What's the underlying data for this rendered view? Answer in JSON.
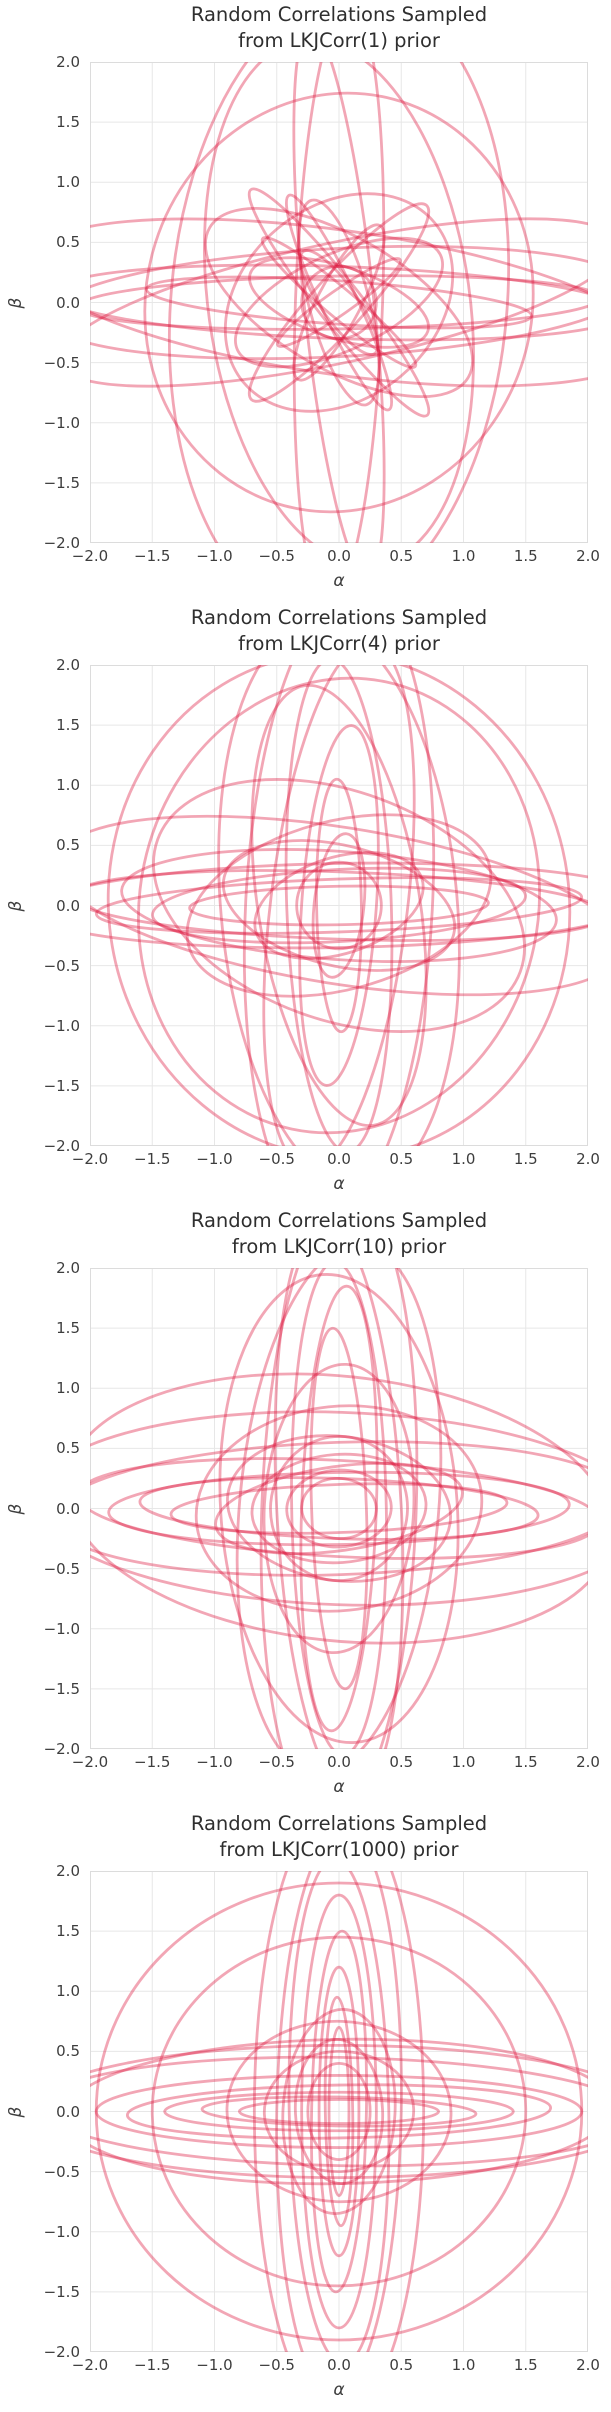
{
  "style": {
    "background": "#ffffff",
    "ellipse_color": "#dc143c",
    "ellipse_opacity": 0.38,
    "ellipse_width": 2.8,
    "grid_color": "#e7e7e7",
    "spine_color": "#dcdcdc",
    "text_color": "#3d3d3d",
    "title_color": "#2f2f2f"
  },
  "chart_data": [
    {
      "type": "ellipse-contour",
      "eta": 1,
      "title_line1": "Random Correlations Sampled",
      "title_line2": "from LKJCorr(1) prior",
      "xlabel": "α",
      "ylabel": "β",
      "xlim": [
        -2,
        2
      ],
      "ylim": [
        -2,
        2
      ],
      "grid": true,
      "ticks": {
        "values": [
          -2,
          -1.5,
          -1,
          -0.5,
          0,
          0.5,
          1,
          1.5,
          2
        ],
        "labels": [
          "−2.0",
          "−1.5",
          "−1.0",
          "−0.5",
          "0.0",
          "0.5",
          "1.0",
          "1.5",
          "2.0"
        ]
      },
      "ellipses": [
        [
          1.35,
          2.6,
          -5
        ],
        [
          1.05,
          2.2,
          8
        ],
        [
          1.55,
          1.75,
          -15
        ],
        [
          0.35,
          2.5,
          -2
        ],
        [
          0.28,
          2.3,
          6
        ],
        [
          2.35,
          0.45,
          3
        ],
        [
          2.3,
          0.3,
          -2
        ],
        [
          2.1,
          0.22,
          1
        ],
        [
          1.55,
          0.18,
          -4
        ],
        [
          2.5,
          0.6,
          -8
        ],
        [
          2.3,
          0.5,
          12
        ],
        [
          1.15,
          0.18,
          -52
        ],
        [
          0.95,
          0.15,
          -65
        ],
        [
          1.05,
          0.22,
          48
        ],
        [
          0.8,
          0.12,
          -40
        ],
        [
          0.7,
          0.18,
          62
        ],
        [
          0.85,
          0.25,
          -75
        ],
        [
          0.6,
          0.1,
          35
        ],
        [
          0.5,
          0.15,
          -55
        ],
        [
          1.2,
          0.55,
          -30
        ],
        [
          0.9,
          0.4,
          25
        ],
        [
          0.75,
          0.3,
          -18
        ],
        [
          1.0,
          0.8,
          40
        ],
        [
          0.3,
          0.3,
          0
        ]
      ]
    },
    {
      "type": "ellipse-contour",
      "eta": 4,
      "title_line1": "Random Correlations Sampled",
      "title_line2": "from LKJCorr(4) prior",
      "xlabel": "α",
      "ylabel": "β",
      "xlim": [
        -2,
        2
      ],
      "ylim": [
        -2,
        2
      ],
      "grid": true,
      "ticks": {
        "values": [
          -2,
          -1.5,
          -1,
          -0.5,
          0,
          0.5,
          1,
          1.5,
          2
        ],
        "labels": [
          "−2.0",
          "−1.5",
          "−1.0",
          "−0.5",
          "0.0",
          "0.5",
          "1.0",
          "1.5",
          "2.0"
        ]
      },
      "ellipses": [
        [
          0.75,
          2.6,
          -3
        ],
        [
          0.95,
          2.35,
          5
        ],
        [
          0.55,
          2.2,
          -7
        ],
        [
          0.42,
          2.05,
          2
        ],
        [
          0.65,
          1.85,
          9
        ],
        [
          0.3,
          1.5,
          -4
        ],
        [
          0.18,
          1.05,
          1
        ],
        [
          1.6,
          1.9,
          -12
        ],
        [
          1.85,
          2.1,
          8
        ],
        [
          2.45,
          0.35,
          1
        ],
        [
          2.15,
          0.28,
          -2
        ],
        [
          1.95,
          0.22,
          2
        ],
        [
          1.75,
          0.45,
          -4
        ],
        [
          1.5,
          0.3,
          3
        ],
        [
          2.3,
          0.65,
          -9
        ],
        [
          1.2,
          0.16,
          1
        ],
        [
          1.55,
          0.95,
          -20
        ],
        [
          1.25,
          0.7,
          15
        ],
        [
          0.95,
          0.5,
          -14
        ],
        [
          0.7,
          0.4,
          18
        ],
        [
          0.34,
          0.36,
          0
        ],
        [
          0.2,
          0.6,
          -6
        ]
      ]
    },
    {
      "type": "ellipse-contour",
      "eta": 10,
      "title_line1": "Random Correlations Sampled",
      "title_line2": "from LKJCorr(10) prior",
      "xlabel": "α",
      "ylabel": "β",
      "xlim": [
        -2,
        2
      ],
      "ylim": [
        -2,
        2
      ],
      "grid": true,
      "ticks": {
        "values": [
          -2,
          -1.5,
          -1,
          -0.5,
          0,
          0.5,
          1,
          1.5,
          2
        ],
        "labels": [
          "−2.0",
          "−1.5",
          "−1.0",
          "−0.5",
          "0.0",
          "0.5",
          "1.0",
          "1.5",
          "2.0"
        ]
      },
      "ellipses": [
        [
          0.62,
          2.6,
          -2
        ],
        [
          0.5,
          2.4,
          3
        ],
        [
          0.8,
          2.2,
          -5
        ],
        [
          0.38,
          2.05,
          1
        ],
        [
          0.3,
          1.85,
          -2
        ],
        [
          0.95,
          1.95,
          4
        ],
        [
          0.22,
          1.5,
          2
        ],
        [
          2.45,
          0.8,
          -2
        ],
        [
          2.3,
          0.55,
          2
        ],
        [
          2.1,
          0.4,
          -3
        ],
        [
          1.85,
          0.3,
          1
        ],
        [
          1.6,
          0.25,
          -2
        ],
        [
          1.35,
          0.2,
          2
        ],
        [
          2.2,
          1.1,
          -6
        ],
        [
          1.15,
          0.85,
          6
        ],
        [
          0.9,
          0.6,
          -7
        ],
        [
          0.7,
          0.45,
          4
        ],
        [
          0.55,
          0.6,
          -5
        ],
        [
          0.42,
          0.32,
          3
        ],
        [
          0.3,
          0.25,
          -4
        ],
        [
          1.0,
          0.35,
          8
        ],
        [
          0.6,
          1.2,
          -3
        ]
      ]
    },
    {
      "type": "ellipse-contour",
      "eta": 1000,
      "title_line1": "Random Correlations Sampled",
      "title_line2": "from LKJCorr(1000) prior",
      "xlabel": "α",
      "ylabel": "β",
      "xlim": [
        -2,
        2
      ],
      "ylim": [
        -2,
        2
      ],
      "grid": true,
      "ticks": {
        "values": [
          -2,
          -1.5,
          -1,
          -0.5,
          0,
          0.5,
          1,
          1.5,
          2
        ],
        "labels": [
          "−2.0",
          "−1.5",
          "−1.0",
          "−0.5",
          "0.0",
          "0.5",
          "1.0",
          "1.5",
          "2.0"
        ]
      },
      "ellipses": [
        [
          1.95,
          1.9,
          0
        ],
        [
          1.5,
          1.45,
          1
        ],
        [
          0.68,
          2.55,
          0
        ],
        [
          0.5,
          2.35,
          -1
        ],
        [
          0.4,
          2.1,
          1
        ],
        [
          0.3,
          1.8,
          0
        ],
        [
          0.22,
          1.5,
          -1
        ],
        [
          0.16,
          1.2,
          0
        ],
        [
          0.11,
          0.95,
          1
        ],
        [
          0.08,
          0.7,
          0
        ],
        [
          2.5,
          0.55,
          0
        ],
        [
          2.4,
          0.45,
          -1
        ],
        [
          2.2,
          0.6,
          1
        ],
        [
          1.95,
          0.3,
          0
        ],
        [
          1.7,
          0.22,
          1
        ],
        [
          1.4,
          0.16,
          0
        ],
        [
          1.1,
          0.12,
          -1
        ],
        [
          0.8,
          0.1,
          0
        ],
        [
          0.6,
          0.5,
          2
        ],
        [
          0.45,
          0.85,
          -3
        ],
        [
          0.35,
          0.6,
          3
        ],
        [
          0.9,
          0.75,
          -2
        ],
        [
          0.25,
          0.4,
          0
        ]
      ]
    }
  ]
}
